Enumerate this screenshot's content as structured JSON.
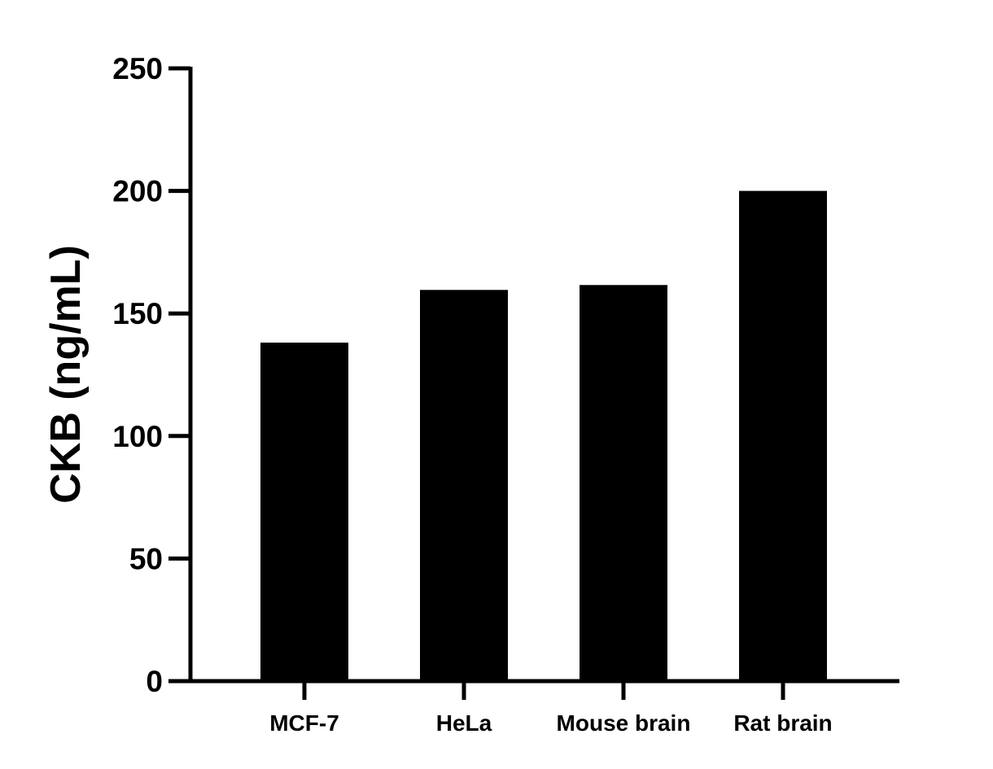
{
  "chart_data": {
    "type": "bar",
    "title": "",
    "xlabel": "",
    "ylabel": "CKB (ng/mL)",
    "categories": [
      "MCF-7",
      "HeLa",
      "Mouse brain",
      "Rat brain"
    ],
    "values": [
      138.1,
      159.6,
      161.6,
      200
    ],
    "ylim": [
      0,
      250
    ],
    "yticks": [
      0,
      50,
      100,
      150,
      200,
      250
    ],
    "grid": false,
    "bar_color": "#000000"
  }
}
